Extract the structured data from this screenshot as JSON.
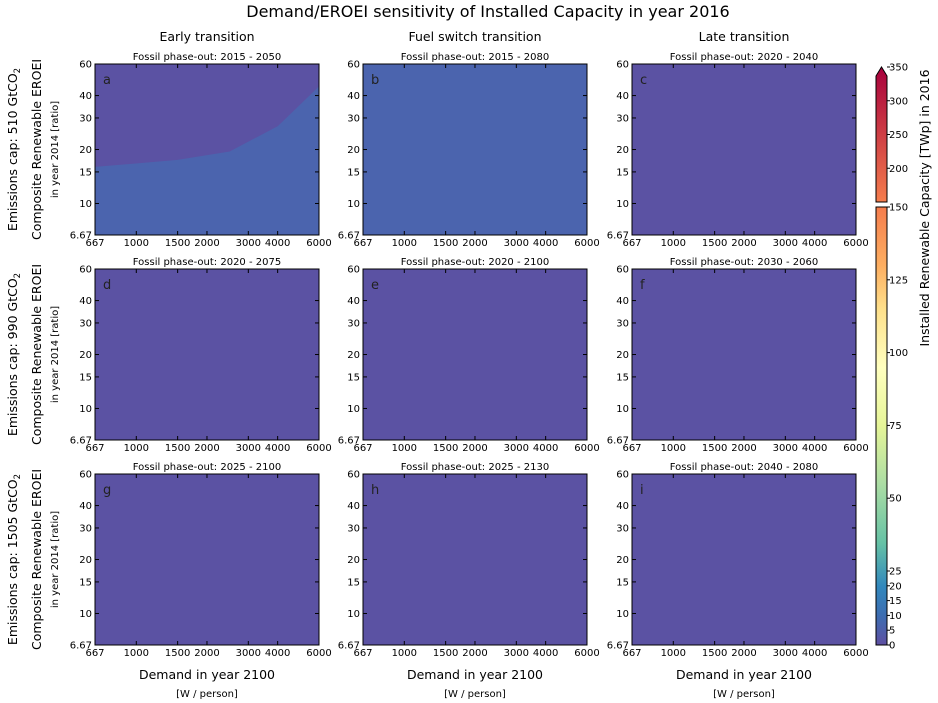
{
  "title": "Demand/EROEI sensitivity of Installed Capacity in year 2016",
  "colors": {
    "region_low": "#5b52a3",
    "region_high": "#4b64ae",
    "colorbar_upper_start": "#f57d4d",
    "colorbar_upper_end": "#a7003c"
  },
  "chart_data": {
    "type": "heatmap",
    "column_titles": [
      "Early transition",
      "Fuel switch transition",
      "Late transition"
    ],
    "row_labels": [
      {
        "main": "Emissions cap: 510 GtCO",
        "sub": "2"
      },
      {
        "main": "Emissions cap: 990 GtCO",
        "sub": "2"
      },
      {
        "main": "Emissions cap: 1505 GtCO",
        "sub": "2"
      }
    ],
    "ylabel": "Composite Renewable EROEI",
    "ylabel_sub": "in year 2014 [ratio]",
    "xlabel": "Demand in year 2100",
    "xlabel_sub": "[W / person]",
    "x_scale": "log",
    "y_scale": "log",
    "xlim": [
      667,
      6000
    ],
    "ylim": [
      6.67,
      60
    ],
    "x_ticks": [
      667,
      1000,
      1500,
      2000,
      3000,
      4000,
      6000
    ],
    "x_tick_labels": [
      "667",
      "1000",
      "1500",
      "2000",
      "3000",
      "4000",
      "6000"
    ],
    "y_ticks": [
      6.67,
      10,
      15,
      20,
      30,
      40,
      60
    ],
    "y_tick_labels": [
      "6.67",
      "10",
      "15",
      "20",
      "30",
      "40",
      "60"
    ],
    "panels": [
      {
        "letter": "a",
        "subtitle": "Fossil phase-out: 2015 - 2050",
        "fill": "#5b52a3",
        "boundary": {
          "fill": "#4b64ae",
          "points": [
            [
              667,
              16
            ],
            [
              1500,
              17.5
            ],
            [
              2500,
              19.5
            ],
            [
              4000,
              27
            ],
            [
              6000,
              45
            ]
          ]
        }
      },
      {
        "letter": "b",
        "subtitle": "Fossil phase-out: 2015 - 2080",
        "fill": "#4b64ae"
      },
      {
        "letter": "c",
        "subtitle": "Fossil phase-out: 2020 - 2040",
        "fill": "#5b52a3"
      },
      {
        "letter": "d",
        "subtitle": "Fossil phase-out: 2020 - 2075",
        "fill": "#5b52a3"
      },
      {
        "letter": "e",
        "subtitle": "Fossil phase-out: 2020 - 2100",
        "fill": "#5b52a3"
      },
      {
        "letter": "f",
        "subtitle": "Fossil phase-out: 2030 - 2060",
        "fill": "#5b52a3"
      },
      {
        "letter": "g",
        "subtitle": "Fossil phase-out: 2025 - 2100",
        "fill": "#5b52a3"
      },
      {
        "letter": "h",
        "subtitle": "Fossil phase-out: 2025 - 2130",
        "fill": "#5b52a3"
      },
      {
        "letter": "i",
        "subtitle": "Fossil phase-out: 2040 - 2080",
        "fill": "#5b52a3"
      }
    ],
    "colorbar": {
      "label": "Installed Renewable Capacity [TWp] in 2016",
      "lower": {
        "range": [
          0,
          150
        ],
        "ticks": [
          0,
          5,
          10,
          15,
          20,
          25,
          50,
          75,
          100,
          125,
          150
        ],
        "tick_labels": [
          "0",
          "5",
          "10",
          "15",
          "20",
          "25",
          "50",
          "75",
          "100",
          "125",
          "150"
        ],
        "stops": [
          [
            0,
            "#5e4fa2"
          ],
          [
            10,
            "#3d6db1"
          ],
          [
            20,
            "#3288bd"
          ],
          [
            35,
            "#66c2a5"
          ],
          [
            55,
            "#abdda4"
          ],
          [
            75,
            "#e6f598"
          ],
          [
            95,
            "#ffffbf"
          ],
          [
            115,
            "#fee08b"
          ],
          [
            130,
            "#fdae61"
          ],
          [
            150,
            "#f57d4d"
          ]
        ]
      },
      "upper": {
        "range": [
          150,
          350
        ],
        "ticks": [
          200,
          250,
          300,
          350
        ],
        "tick_labels": [
          "200",
          "250",
          "300",
          "350"
        ],
        "extend": "max"
      }
    }
  }
}
